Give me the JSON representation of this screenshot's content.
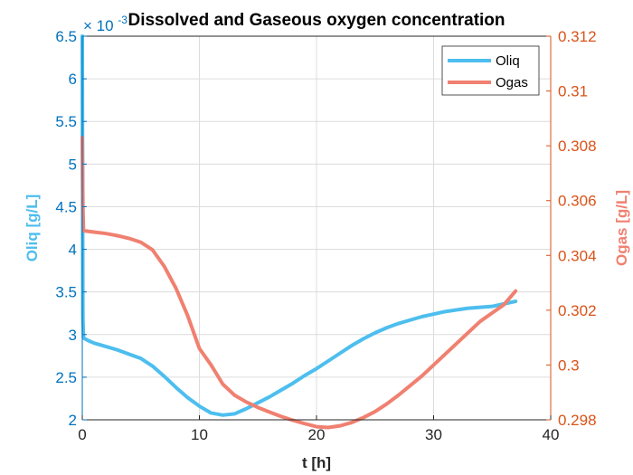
{
  "chart_data": {
    "type": "line",
    "title": "Dissolved and Gaseous oxygen concentration",
    "xlabel": "t [h]",
    "ylabel_left": "Oliq [g/L]",
    "ylabel_right": "Ogas [g/L]",
    "left_exponent_text": "× 10",
    "left_exponent_power": "-3",
    "xlim": [
      0,
      40
    ],
    "ylim_left": [
      2,
      6.5
    ],
    "ylim_right": [
      0.298,
      0.312
    ],
    "x_ticks": [
      "0",
      "10",
      "20",
      "30",
      "40"
    ],
    "y_left_ticks": [
      "2",
      "2.5",
      "3",
      "3.5",
      "4",
      "4.5",
      "5",
      "5.5",
      "6",
      "6.5"
    ],
    "y_right_ticks": [
      "0.298",
      "0.3",
      "0.302",
      "0.304",
      "0.306",
      "0.308",
      "0.31",
      "0.312"
    ],
    "grid": true,
    "legend_position": "top-right",
    "colors": {
      "left_axis": "#0072BD",
      "right_axis": "#D95319",
      "oliq": "#4DBEEE",
      "ogas": "#F08070",
      "grid": "#dcdcdc",
      "axis": "#262626"
    },
    "series": [
      {
        "name": "Oliq",
        "axis": "left",
        "points": [
          [
            0,
            6.5
          ],
          [
            0.02,
            5.0
          ],
          [
            0.05,
            3.2
          ],
          [
            0.1,
            2.96
          ],
          [
            0.5,
            2.93
          ],
          [
            1,
            2.9
          ],
          [
            2,
            2.86
          ],
          [
            3,
            2.82
          ],
          [
            4,
            2.77
          ],
          [
            5,
            2.72
          ],
          [
            6,
            2.63
          ],
          [
            7,
            2.51
          ],
          [
            8,
            2.38
          ],
          [
            9,
            2.26
          ],
          [
            10,
            2.16
          ],
          [
            11,
            2.08
          ],
          [
            12,
            2.055
          ],
          [
            13,
            2.07
          ],
          [
            14,
            2.13
          ],
          [
            15,
            2.2
          ],
          [
            16,
            2.27
          ],
          [
            17,
            2.35
          ],
          [
            18,
            2.43
          ],
          [
            19,
            2.52
          ],
          [
            20,
            2.6
          ],
          [
            21,
            2.69
          ],
          [
            22,
            2.78
          ],
          [
            23,
            2.87
          ],
          [
            24,
            2.95
          ],
          [
            25,
            3.02
          ],
          [
            26,
            3.08
          ],
          [
            27,
            3.13
          ],
          [
            28,
            3.17
          ],
          [
            29,
            3.21
          ],
          [
            30,
            3.24
          ],
          [
            31,
            3.27
          ],
          [
            32,
            3.29
          ],
          [
            33,
            3.31
          ],
          [
            34,
            3.32
          ],
          [
            35,
            3.33
          ],
          [
            36,
            3.36
          ],
          [
            37,
            3.39
          ]
        ]
      },
      {
        "name": "Ogas",
        "axis": "right",
        "points": [
          [
            0,
            0.3083
          ],
          [
            0.05,
            0.3058
          ],
          [
            0.1,
            0.3049
          ],
          [
            1,
            0.30485
          ],
          [
            2,
            0.3048
          ],
          [
            3,
            0.30472
          ],
          [
            4,
            0.30462
          ],
          [
            5,
            0.30448
          ],
          [
            6,
            0.3042
          ],
          [
            7,
            0.3036
          ],
          [
            8,
            0.3028
          ],
          [
            9,
            0.3018
          ],
          [
            10,
            0.3006
          ],
          [
            11,
            0.3
          ],
          [
            12,
            0.2993
          ],
          [
            13,
            0.2989
          ],
          [
            14,
            0.29865
          ],
          [
            15,
            0.29845
          ],
          [
            16,
            0.29828
          ],
          [
            17,
            0.29812
          ],
          [
            18,
            0.29798
          ],
          [
            19,
            0.29786
          ],
          [
            20,
            0.29775
          ],
          [
            21,
            0.29772
          ],
          [
            22,
            0.29778
          ],
          [
            23,
            0.2979
          ],
          [
            24,
            0.29808
          ],
          [
            25,
            0.2983
          ],
          [
            26,
            0.29858
          ],
          [
            27,
            0.2989
          ],
          [
            28,
            0.29925
          ],
          [
            29,
            0.2996
          ],
          [
            30,
            0.3
          ],
          [
            31,
            0.3004
          ],
          [
            32,
            0.3008
          ],
          [
            33,
            0.3012
          ],
          [
            34,
            0.3016
          ],
          [
            35,
            0.3019
          ],
          [
            35.5,
            0.30205
          ],
          [
            36,
            0.3022
          ],
          [
            37,
            0.3027
          ]
        ]
      }
    ]
  }
}
